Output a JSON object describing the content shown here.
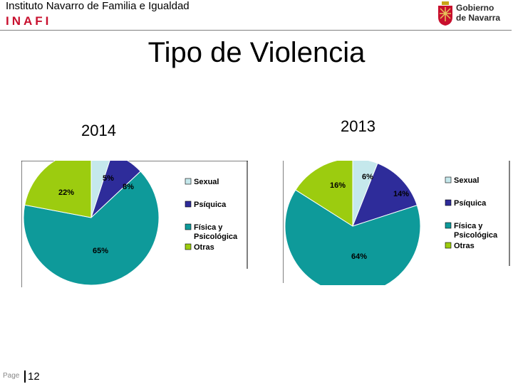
{
  "header": {
    "organization": "Instituto Navarro de Familia e Igualdad",
    "acronym": "INAFI",
    "logo_line1": "Gobierno",
    "logo_line2": "de Navarra"
  },
  "page_title": "Tipo de Violencia",
  "colors": {
    "sexual": "#c5e8ec",
    "psiquica": "#2e2c9a",
    "fisica": "#0e9a9a",
    "otras": "#9ccc0f",
    "logo_red": "#c8102e"
  },
  "chart_data": [
    {
      "type": "pie",
      "title": "2014",
      "categories": [
        "Sexual",
        "Psíquica",
        "Física y Psicológica",
        "Otras"
      ],
      "values": [
        5,
        8,
        65,
        22
      ],
      "labels": [
        "5%",
        "8%",
        "65%",
        "22%"
      ],
      "legend_placement": "right"
    },
    {
      "type": "pie",
      "title": "2013",
      "categories": [
        "Sexual",
        "Psíquica",
        "Física y Psicológica",
        "Otras"
      ],
      "values": [
        6,
        14,
        64,
        16
      ],
      "labels": [
        "6%",
        "14%",
        "64%",
        "16%"
      ],
      "legend_placement": "right"
    }
  ],
  "footer": {
    "page_label": "Page",
    "page_number": "12"
  }
}
